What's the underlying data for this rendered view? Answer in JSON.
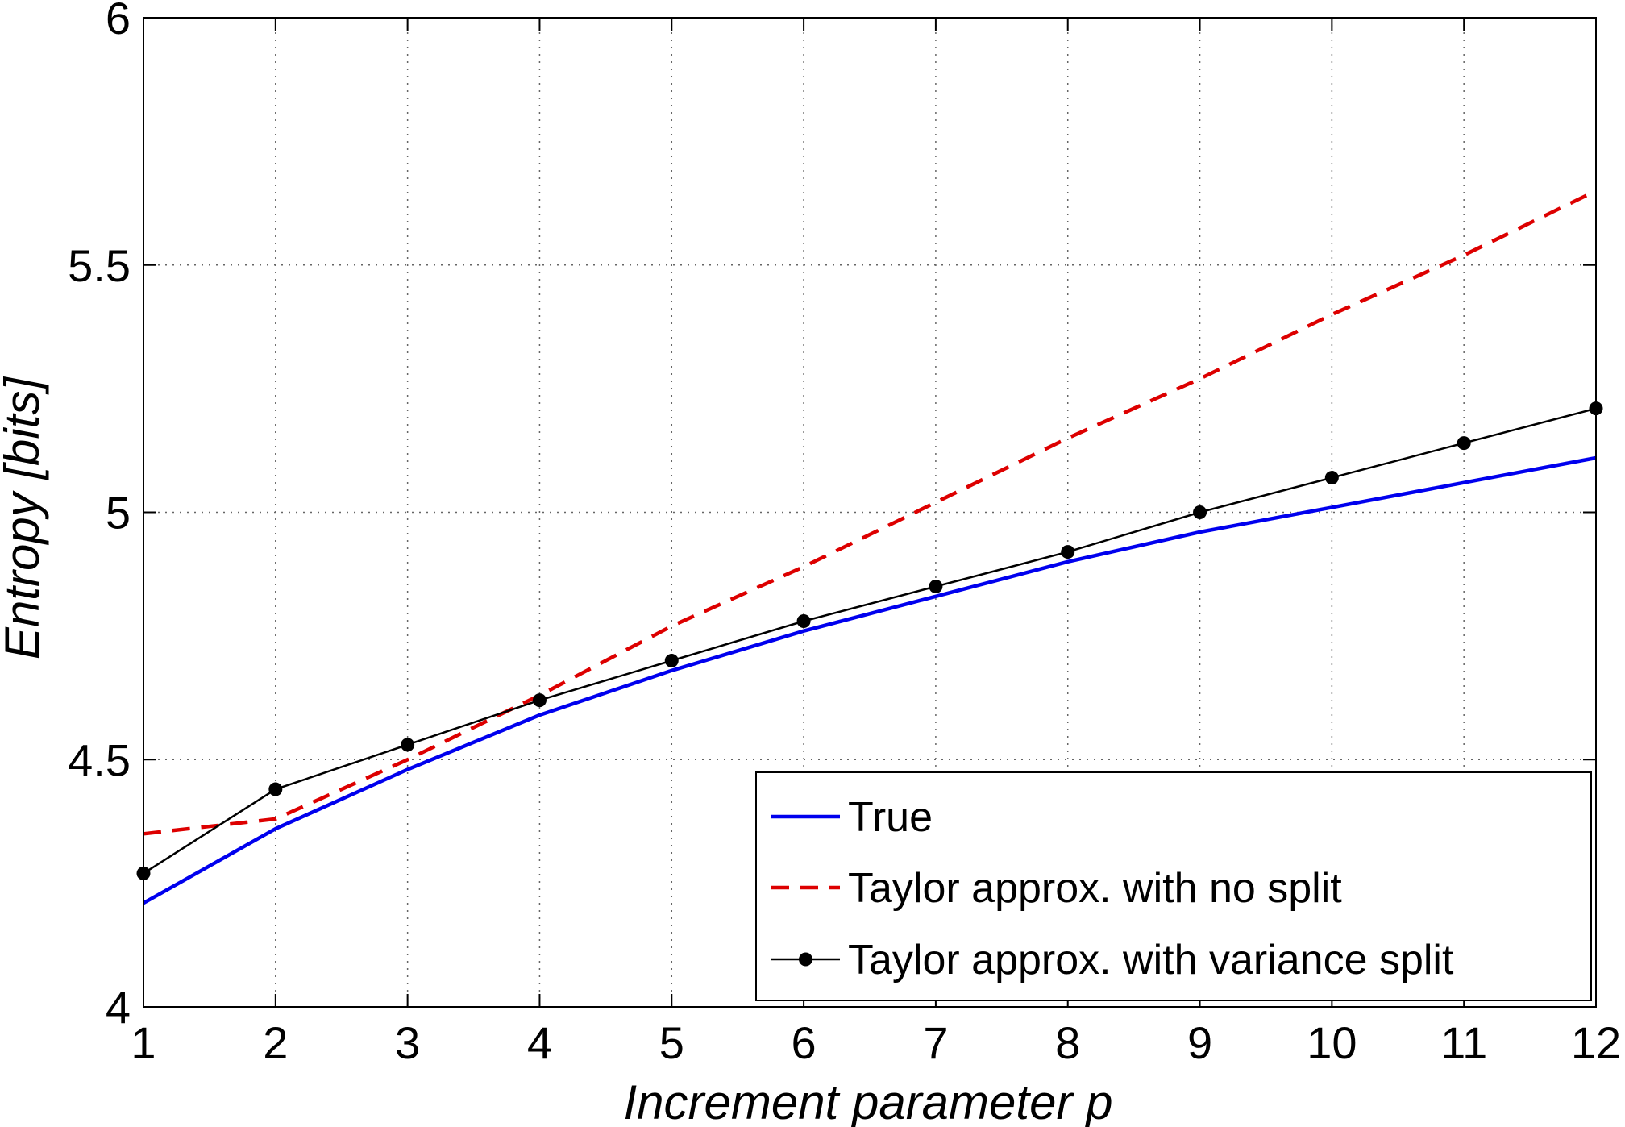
{
  "chart_data": {
    "type": "line",
    "xlabel": "Increment parameter p",
    "ylabel": "Entropy [bits]",
    "xlim": [
      1,
      12
    ],
    "ylim": [
      4,
      6
    ],
    "xticks": [
      "1",
      "2",
      "3",
      "4",
      "5",
      "6",
      "7",
      "8",
      "9",
      "10",
      "11",
      "12"
    ],
    "yticks": [
      "4",
      "4.5",
      "5",
      "5.5",
      "6"
    ],
    "grid": true,
    "legend_position": "bottom-right",
    "x": [
      1,
      2,
      3,
      4,
      5,
      6,
      7,
      8,
      9,
      10,
      11,
      12
    ],
    "series": [
      {
        "name": "True",
        "color": "#0000ee",
        "style": "solid",
        "values": [
          4.21,
          4.36,
          4.48,
          4.59,
          4.68,
          4.76,
          4.83,
          4.9,
          4.96,
          5.01,
          5.06,
          5.11
        ]
      },
      {
        "name": "Taylor approx. with no split",
        "color": "#dd0000",
        "style": "dashed",
        "values": [
          4.35,
          4.38,
          4.5,
          4.63,
          4.77,
          4.89,
          5.02,
          5.15,
          5.27,
          5.4,
          5.52,
          5.65
        ]
      },
      {
        "name": "Taylor approx. with variance split",
        "color": "#000000",
        "style": "solid-markers",
        "values": [
          4.27,
          4.44,
          4.53,
          4.62,
          4.7,
          4.78,
          4.85,
          4.92,
          5.0,
          5.07,
          5.14,
          5.21
        ]
      }
    ]
  }
}
